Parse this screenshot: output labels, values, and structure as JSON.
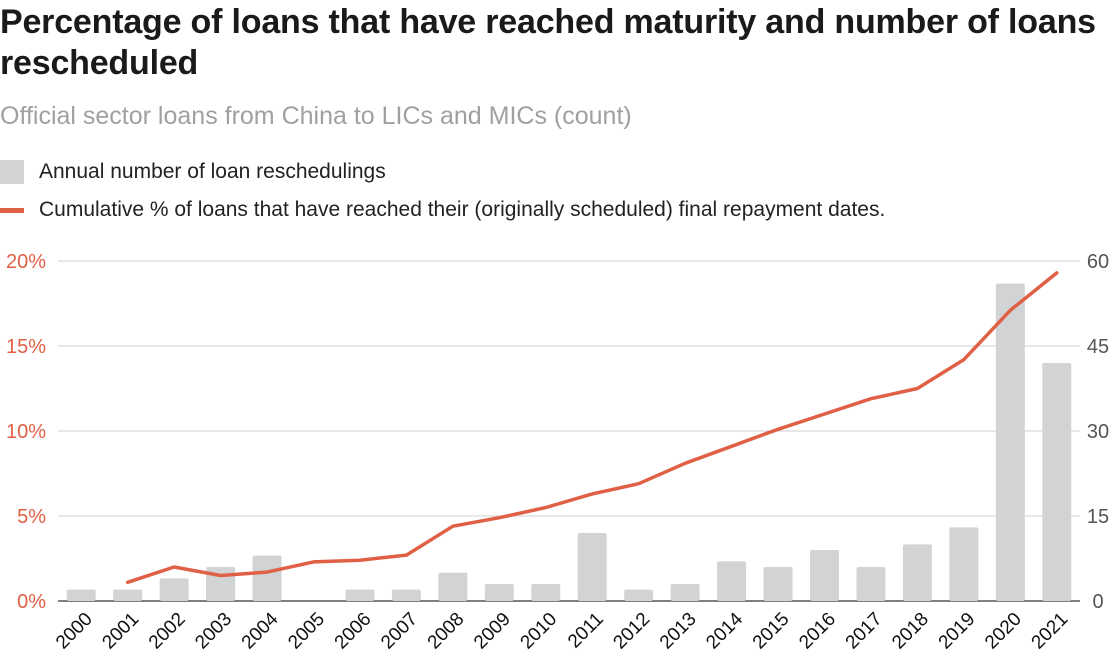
{
  "chart_data": {
    "type": "bar+line",
    "title": "Percentage of loans that have reached maturity and number of loans rescheduled",
    "subtitle": "Official sector loans from China to LICs and MICs (count)",
    "legend": [
      {
        "name": "Annual number of loan reschedulings",
        "marker": "bar",
        "color": "#d1d3d4"
      },
      {
        "name": "Cumulative % of loans that have reached their (originally scheduled) final repayment dates.",
        "marker": "line",
        "color": "#e06046"
      }
    ],
    "categories": [
      "2000",
      "2001",
      "2002",
      "2003",
      "2004",
      "2005",
      "2006",
      "2007",
      "2008",
      "2009",
      "2010",
      "2011",
      "2012",
      "2013",
      "2014",
      "2015",
      "2016",
      "2017",
      "2018",
      "2019",
      "2020",
      "2021"
    ],
    "series": [
      {
        "name": "Annual number of loan reschedulings",
        "type": "bar",
        "axis": "right",
        "values": [
          2,
          2,
          4,
          6,
          8,
          0,
          2,
          2,
          5,
          3,
          3,
          12,
          2,
          3,
          7,
          6,
          9,
          6,
          10,
          13,
          56,
          42
        ]
      },
      {
        "name": "Cumulative % of loans that have reached their (originally scheduled) final repayment dates.",
        "type": "line",
        "axis": "left",
        "values": [
          null,
          1.1,
          2.0,
          1.5,
          1.7,
          2.3,
          2.4,
          2.7,
          4.4,
          4.9,
          5.5,
          6.3,
          6.9,
          8.1,
          9.1,
          10.1,
          11.0,
          11.9,
          12.5,
          14.2,
          17.1,
          19.3
        ]
      }
    ],
    "y_left": {
      "ylim": [
        0,
        20
      ],
      "ticks": [
        "0%",
        "5%",
        "10%",
        "15%",
        "20%"
      ],
      "color": "#e06046"
    },
    "y_right": {
      "ylim": [
        0,
        60
      ],
      "ticks": [
        "0",
        "15",
        "30",
        "45",
        "60"
      ],
      "color": "#555555"
    },
    "grid": true,
    "legend_position": "top-left"
  }
}
